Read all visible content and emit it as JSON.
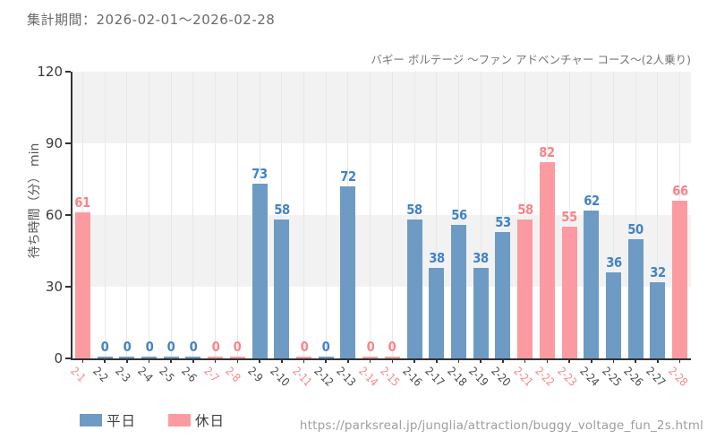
{
  "header": {
    "period_label": "集計期間：2026-02-01～2026-02-28"
  },
  "footer": {
    "url": "https://parksreal.jp/junglia/attraction/buggy_voltage_fun_2s.html"
  },
  "legend": {
    "weekday_label": "平日",
    "holiday_label": "休日"
  },
  "colors": {
    "weekday_bar": "#6d9bc4",
    "holiday_bar": "#fb9ba1",
    "weekday_value_label": "#4383c5",
    "holiday_value_label": "#f9848b",
    "weekday_tick_label": "#4a4a4a",
    "holiday_tick_label": "#f8878d",
    "band_fill": "#f2f2f2",
    "gridline": "#e8e8e8",
    "axis": "#333333"
  },
  "chart_data": {
    "type": "bar",
    "title": "バギー ボルテージ ～ファン アドベンチャー コース～(2人乗り)",
    "ylabel": "待ち時間（分） min",
    "ylim": [
      0,
      120
    ],
    "yticks": [
      0,
      30,
      60,
      90,
      120
    ],
    "shaded_bands": [
      [
        30,
        60
      ],
      [
        90,
        120
      ]
    ],
    "grid": "vertical gridlines per category, shaded horizontal bands",
    "legend_position": "bottom-left",
    "categories": [
      "2-1",
      "2-2",
      "2-3",
      "2-4",
      "2-5",
      "2-6",
      "2-7",
      "2-8",
      "2-9",
      "2-10",
      "2-11",
      "2-12",
      "2-13",
      "2-14",
      "2-15",
      "2-16",
      "2-17",
      "2-18",
      "2-19",
      "2-20",
      "2-21",
      "2-22",
      "2-23",
      "2-24",
      "2-25",
      "2-26",
      "2-27",
      "2-28"
    ],
    "values": [
      61,
      0,
      0,
      0,
      0,
      0,
      0,
      0,
      73,
      58,
      0,
      0,
      72,
      0,
      0,
      58,
      38,
      56,
      38,
      53,
      58,
      82,
      55,
      62,
      36,
      50,
      32,
      66
    ],
    "day_types": [
      "holiday",
      "weekday",
      "weekday",
      "weekday",
      "weekday",
      "weekday",
      "holiday",
      "holiday",
      "weekday",
      "weekday",
      "holiday",
      "weekday",
      "weekday",
      "holiday",
      "holiday",
      "weekday",
      "weekday",
      "weekday",
      "weekday",
      "weekday",
      "holiday",
      "holiday",
      "holiday",
      "weekday",
      "weekday",
      "weekday",
      "weekday",
      "holiday"
    ]
  }
}
